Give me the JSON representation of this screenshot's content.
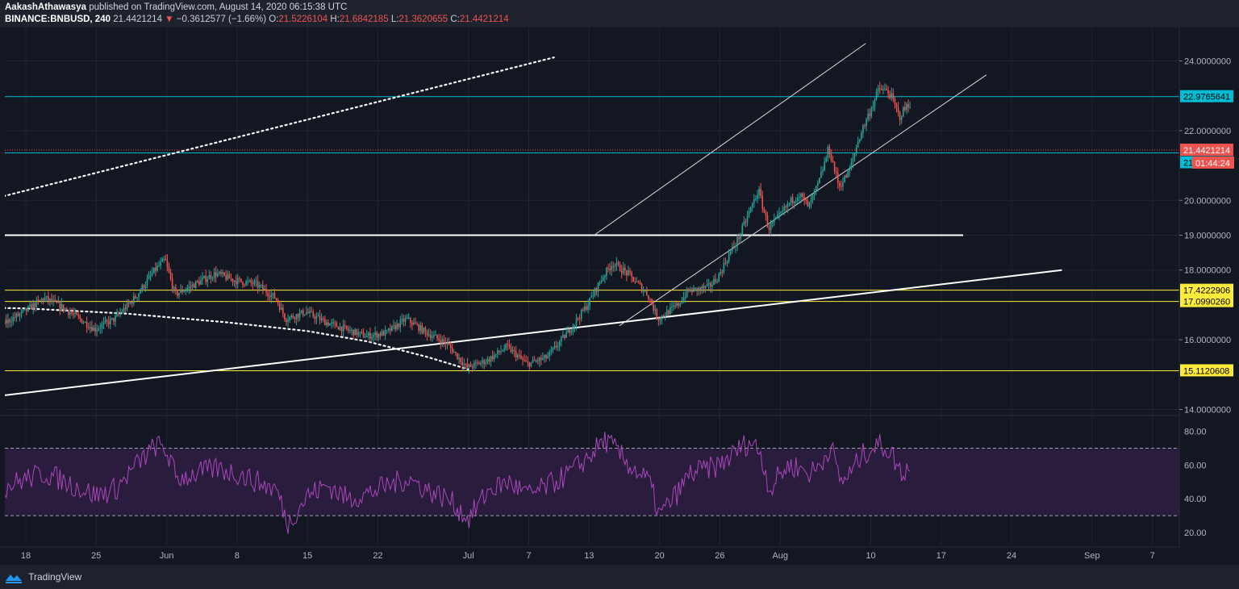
{
  "header": {
    "author": "AakashAthawasya",
    "published_text": "published on TradingView.com, August 14, 2020 06:15:38 UTC",
    "symbol": "BINANCE:BNBUSD, 240",
    "last_price": "21.4421214",
    "change_arrow": "▼",
    "change": "−0.3612577 (−1.66%)",
    "o_label": "O:",
    "o_value": "21.5226104",
    "h_label": "H:",
    "h_value": "21.6842185",
    "l_label": "L:",
    "l_value": "21.3620655",
    "c_label": "C:",
    "c_value": "21.4421214"
  },
  "footer": {
    "brand": "TradingView"
  },
  "colors": {
    "background": "#131722",
    "up": "#26a69a",
    "down": "#ef5350",
    "cyan": "#00bcd4",
    "yellow": "#ffeb3b",
    "white": "#ffffff",
    "rsi_line": "#ab47bc",
    "rsi_band": "#2a1c3d"
  },
  "chart_data": {
    "type": "candlestick",
    "price_axis": {
      "ylim": [
        14,
        24.6
      ],
      "ticks": [
        14,
        16,
        18,
        19,
        20,
        22,
        24
      ],
      "tick_labels": [
        "14.0000000",
        "16.0000000",
        "18.0000000",
        "19.0000000",
        "20.0000000",
        "22.0000000",
        "24.0000000"
      ]
    },
    "time_axis": {
      "x_labels": [
        "18",
        "25",
        "Jun",
        "8",
        "15",
        "22",
        "Jul",
        "7",
        "13",
        "20",
        "26",
        "Aug",
        "10",
        "17",
        "24",
        "Sep",
        "7"
      ],
      "x_label_days": [
        0,
        7,
        14,
        21,
        28,
        35,
        44,
        50,
        56,
        63,
        69,
        75,
        84,
        91,
        98,
        106,
        112
      ]
    },
    "last_bar_day": 88,
    "horizontal_levels": [
      {
        "value": 22.9765641,
        "label": "22.9765641",
        "color": "cyan"
      },
      {
        "value": 21.3602411,
        "label": "21.3602411",
        "color": "cyan"
      },
      {
        "value": 17.4222906,
        "label": "17.4222906",
        "color": "yellow"
      },
      {
        "value": 17.099026,
        "label": "17.0990260",
        "color": "yellow"
      },
      {
        "value": 15.1120608,
        "label": "15.1120608",
        "color": "yellow"
      },
      {
        "value": 19.0,
        "label": "",
        "color": "white"
      }
    ],
    "last_price_tag": {
      "value": 21.4421214,
      "label": "21.4421214",
      "countdown": "01:44:24"
    },
    "trendlines": [
      {
        "name": "rising-support",
        "from": [
          -15.5,
          13.95
        ],
        "to": [
          103,
          18.0
        ],
        "style": "solid"
      },
      {
        "name": "channel-upper",
        "from": [
          56.5,
          19.0
        ],
        "to": [
          83.5,
          24.5
        ],
        "style": "solid-thin"
      },
      {
        "name": "channel-lower",
        "from": [
          59,
          16.4
        ],
        "to": [
          95.5,
          23.6
        ],
        "style": "solid-thin"
      },
      {
        "name": "dotted-resistance",
        "from": [
          -17.6,
          19.0
        ],
        "to": [
          52.5,
          24.1
        ],
        "style": "dotted"
      }
    ],
    "dotted_curve": [
      [
        -17.6,
        16.95
      ],
      [
        -10,
        16.95
      ],
      [
        0,
        16.9
      ],
      [
        10,
        16.75
      ],
      [
        20,
        16.5
      ],
      [
        28,
        16.25
      ],
      [
        34,
        15.95
      ],
      [
        40,
        15.5
      ],
      [
        44,
        15.15
      ]
    ],
    "keypoints": [
      [
        -17.6,
        16.2
      ],
      [
        -15,
        16.5
      ],
      [
        -12,
        17.1
      ],
      [
        -9,
        17.0
      ],
      [
        -6,
        16.6
      ],
      [
        -3,
        16.3
      ],
      [
        0,
        16.8
      ],
      [
        2,
        17.2
      ],
      [
        4,
        16.9
      ],
      [
        7,
        16.3
      ],
      [
        9,
        16.6
      ],
      [
        11,
        17.2
      ],
      [
        13,
        18.0
      ],
      [
        14,
        18.3
      ],
      [
        15,
        17.3
      ],
      [
        17,
        17.6
      ],
      [
        19,
        17.9
      ],
      [
        21,
        17.7
      ],
      [
        23,
        17.6
      ],
      [
        25,
        17.2
      ],
      [
        26,
        16.6
      ],
      [
        28,
        16.8
      ],
      [
        30,
        16.5
      ],
      [
        32,
        16.3
      ],
      [
        34,
        16.1
      ],
      [
        36,
        16.2
      ],
      [
        38,
        16.6
      ],
      [
        40,
        16.2
      ],
      [
        42,
        15.9
      ],
      [
        44,
        15.2
      ],
      [
        46,
        15.4
      ],
      [
        48,
        15.8
      ],
      [
        50,
        15.3
      ],
      [
        52,
        15.5
      ],
      [
        54,
        16.2
      ],
      [
        56,
        17.0
      ],
      [
        57.5,
        17.8
      ],
      [
        58.5,
        18.2
      ],
      [
        60,
        17.9
      ],
      [
        62,
        17.3
      ],
      [
        63,
        16.6
      ],
      [
        65,
        17.0
      ],
      [
        66,
        17.4
      ],
      [
        68,
        17.5
      ],
      [
        69,
        17.8
      ],
      [
        70,
        18.4
      ],
      [
        71,
        18.9
      ],
      [
        72,
        19.6
      ],
      [
        73,
        20.3
      ],
      [
        74,
        19.2
      ],
      [
        75,
        19.5
      ],
      [
        76,
        19.9
      ],
      [
        77,
        20.2
      ],
      [
        78,
        19.8
      ],
      [
        79,
        20.5
      ],
      [
        80,
        21.5
      ],
      [
        81,
        20.4
      ],
      [
        82,
        20.8
      ],
      [
        83,
        21.8
      ],
      [
        84,
        22.5
      ],
      [
        85,
        23.2
      ],
      [
        86,
        23.1
      ],
      [
        87,
        22.4
      ],
      [
        88,
        22.8
      ],
      [
        89,
        21.6
      ],
      [
        90,
        21.2
      ],
      [
        91,
        21.4
      ]
    ],
    "rsi": {
      "ylim": [
        15,
        85
      ],
      "ticks": [
        20,
        40,
        60,
        80
      ],
      "tick_labels": [
        "20.00",
        "40.00",
        "60.00",
        "80.00"
      ],
      "upper_band": 70,
      "lower_band": 30,
      "keypoints": [
        [
          -17.6,
          48
        ],
        [
          -15,
          55
        ],
        [
          -12,
          65
        ],
        [
          -9,
          58
        ],
        [
          -6,
          50
        ],
        [
          -3,
          45
        ],
        [
          0,
          52
        ],
        [
          2,
          55
        ],
        [
          4,
          50
        ],
        [
          7,
          42
        ],
        [
          9,
          46
        ],
        [
          11,
          60
        ],
        [
          13,
          72
        ],
        [
          14,
          68
        ],
        [
          15,
          52
        ],
        [
          17,
          55
        ],
        [
          19,
          58
        ],
        [
          21,
          55
        ],
        [
          23,
          50
        ],
        [
          25,
          45
        ],
        [
          26,
          25
        ],
        [
          28,
          42
        ],
        [
          30,
          48
        ],
        [
          32,
          40
        ],
        [
          34,
          43
        ],
        [
          36,
          48
        ],
        [
          38,
          52
        ],
        [
          40,
          45
        ],
        [
          42,
          40
        ],
        [
          44,
          28
        ],
        [
          46,
          45
        ],
        [
          48,
          50
        ],
        [
          50,
          42
        ],
        [
          52,
          48
        ],
        [
          54,
          55
        ],
        [
          56,
          65
        ],
        [
          57.5,
          75
        ],
        [
          58.5,
          70
        ],
        [
          60,
          60
        ],
        [
          62,
          50
        ],
        [
          63,
          30
        ],
        [
          65,
          45
        ],
        [
          66,
          55
        ],
        [
          68,
          58
        ],
        [
          69,
          60
        ],
        [
          70,
          65
        ],
        [
          71,
          70
        ],
        [
          72,
          74
        ],
        [
          73,
          68
        ],
        [
          74,
          45
        ],
        [
          75,
          55
        ],
        [
          76,
          60
        ],
        [
          77,
          58
        ],
        [
          78,
          55
        ],
        [
          79,
          60
        ],
        [
          80,
          72
        ],
        [
          81,
          50
        ],
        [
          82,
          55
        ],
        [
          83,
          65
        ],
        [
          84,
          70
        ],
        [
          85,
          72
        ],
        [
          86,
          68
        ],
        [
          87,
          55
        ],
        [
          88,
          60
        ],
        [
          89,
          42
        ],
        [
          90,
          50
        ],
        [
          91,
          44
        ]
      ]
    }
  }
}
